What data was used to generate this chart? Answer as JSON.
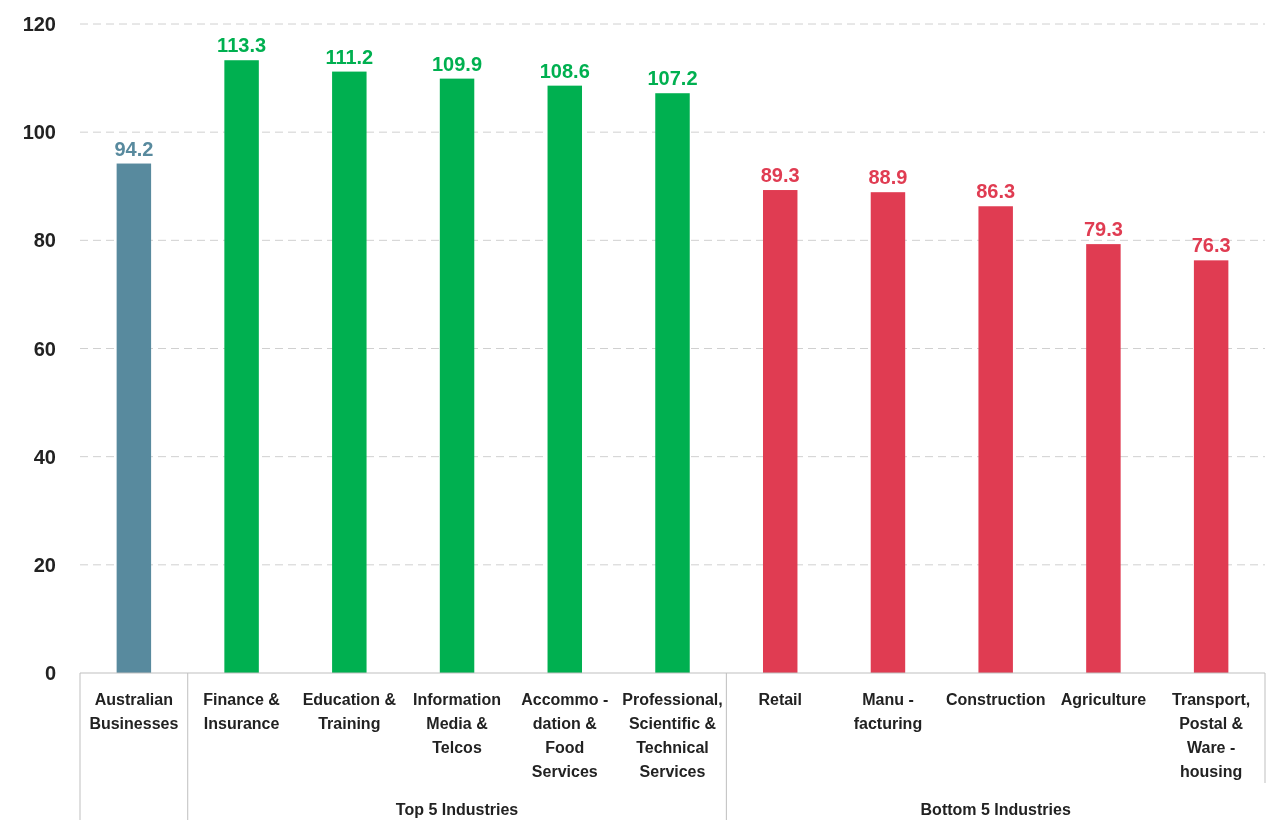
{
  "chart_data": {
    "type": "bar",
    "categories": [
      "Australian\nBusinesses",
      "Finance &\nInsurance",
      "Education &\nTraining",
      "Information\nMedia &\nTelcos",
      "Accommo -\ndation &\nFood\nServices",
      "Professional,\nScientific &\nTechnical\nServices",
      "Retail",
      "Manu -\nfacturing",
      "Construction",
      "Agriculture",
      "Transport,\nPostal &\nWare -\nhousing"
    ],
    "values": [
      94.2,
      113.3,
      111.2,
      109.9,
      108.6,
      107.2,
      89.3,
      88.9,
      86.3,
      79.3,
      76.3
    ],
    "colors": [
      "#588a9e",
      "#00b050",
      "#00b050",
      "#00b050",
      "#00b050",
      "#00b050",
      "#e03c52",
      "#e03c52",
      "#e03c52",
      "#e03c52",
      "#e03c52"
    ],
    "ylim": [
      0,
      120
    ],
    "yticks": [
      0,
      20,
      40,
      60,
      80,
      100,
      120
    ],
    "grid": "y",
    "data_labels": true,
    "annotations": [
      "Top 5 Industries",
      "Bottom 5 Industries"
    ]
  }
}
